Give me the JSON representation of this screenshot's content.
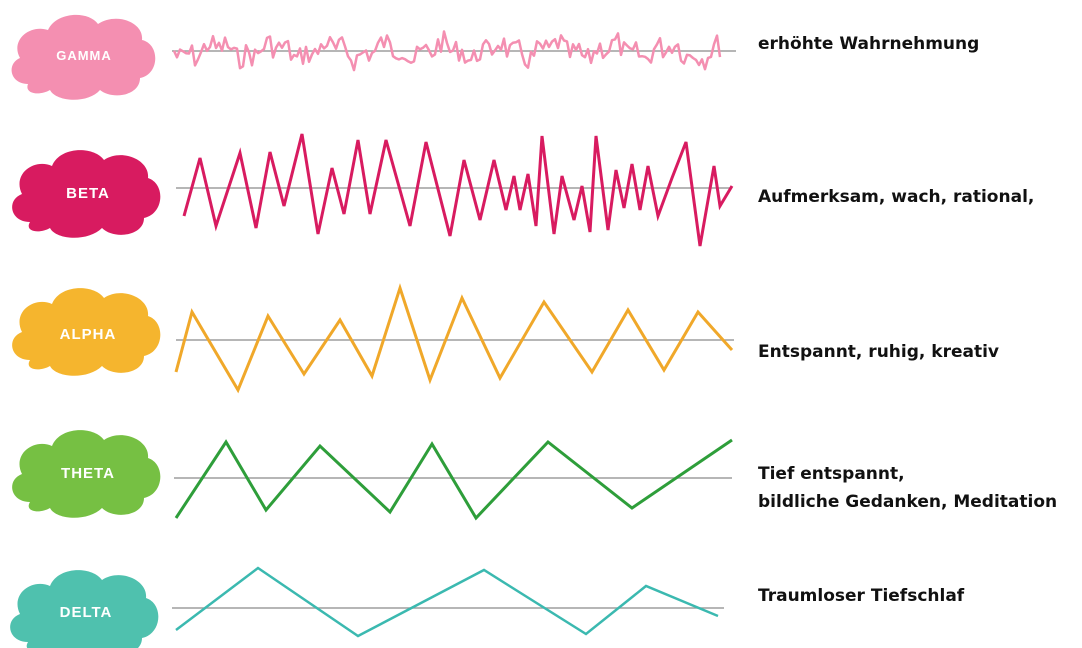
{
  "waves": [
    {
      "label": "GAMMA",
      "color": "#f48fb1",
      "description": [
        "erhöhte Wahrnehmung"
      ]
    },
    {
      "label": "BETA",
      "color": "#d81b60",
      "description": [
        "Aufmerksam, wach, rational,"
      ]
    },
    {
      "label": "ALPHA",
      "color": "#f5b52e",
      "description": [
        "Entspannt, ruhig, kreativ"
      ]
    },
    {
      "label": "THETA",
      "color": "#76c043",
      "wave_color": "#2e9e3a",
      "description": [
        "Tief entspannt,",
        "bildliche Gedanken, Meditation"
      ]
    },
    {
      "label": "DELTA",
      "color": "#4fc1ae",
      "wave_color": "#3bb9b0",
      "description": [
        "Traumloser Tiefschlaf"
      ]
    }
  ],
  "baseline_color": "#9e9e9e"
}
